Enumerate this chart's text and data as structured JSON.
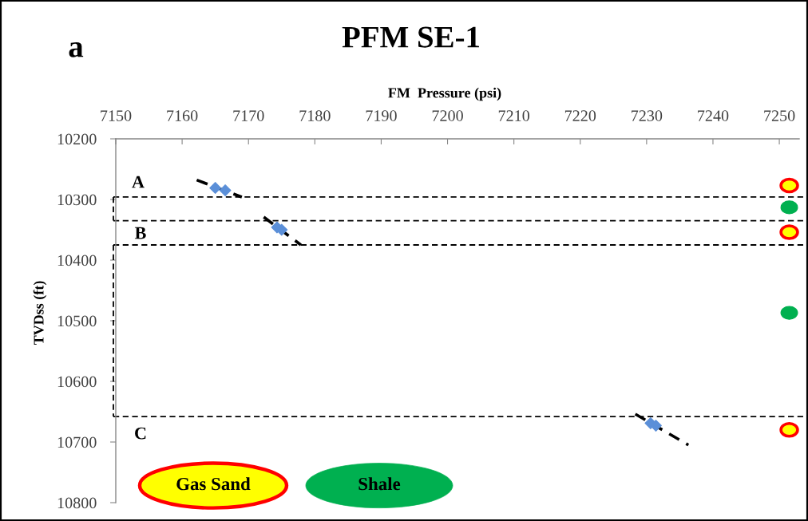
{
  "chart_data": {
    "type": "scatter",
    "title": "PFM SE-1",
    "xlabel": "FM  Pressure (psi)",
    "ylabel": "TVDss (ft)",
    "xlim": [
      7150,
      7253
    ],
    "xticks": [
      7150,
      7160,
      7170,
      7180,
      7190,
      7200,
      7210,
      7220,
      7230,
      7240,
      7250
    ],
    "ylim": [
      10800,
      10200
    ],
    "yticks": [
      10200,
      10300,
      10400,
      10500,
      10600,
      10700,
      10800
    ],
    "series": [
      {
        "color": "#5b8fd8",
        "marker": "diamond",
        "x": [
          7165,
          7166.5,
          7174.3,
          7175,
          7230.6,
          7231.4
        ],
        "values": [
          10281,
          10285,
          10346,
          10350,
          10669,
          10673
        ]
      },
      {
        "type": "line",
        "color": "#000000",
        "line_style": "dashed",
        "marker": "none",
        "x": [
          7162.2,
          7169
        ],
        "values": [
          10268,
          10296
        ]
      },
      {
        "type": "line",
        "color": "#000000",
        "line_style": "dashed",
        "marker": "none",
        "x": [
          7172.3,
          7177.9
        ],
        "values": [
          10329,
          10375
        ]
      },
      {
        "type": "line",
        "color": "#000000",
        "line_style": "dashed",
        "marker": "none",
        "x": [
          7228.3,
          7236.3
        ],
        "values": [
          10654,
          10705
        ]
      },
      {
        "name": "Gas Sand",
        "color": "#ffff00",
        "marker": "circle",
        "x": [
          7251.5,
          7251.5,
          7251.5
        ],
        "values": [
          10277,
          10354,
          10680
        ]
      },
      {
        "name": "Shale",
        "color": "#00b050",
        "marker": "circle",
        "x": [
          7251.5,
          7251.5
        ],
        "values": [
          10313,
          10487
        ]
      }
    ],
    "ref_lines": [
      {
        "axis": "y",
        "value": 10296,
        "color": "#000000",
        "line_style": "dashed"
      },
      {
        "axis": "y",
        "value": 10335,
        "color": "#000000",
        "line_style": "dashed"
      },
      {
        "axis": "y",
        "value": 10375,
        "color": "#000000",
        "line_style": "dashed"
      },
      {
        "axis": "y",
        "value": 10658,
        "color": "#000000",
        "line_style": "dashed"
      }
    ],
    "annotations": [
      "a",
      "A",
      "B",
      "C"
    ],
    "legend": "bottom left"
  }
}
